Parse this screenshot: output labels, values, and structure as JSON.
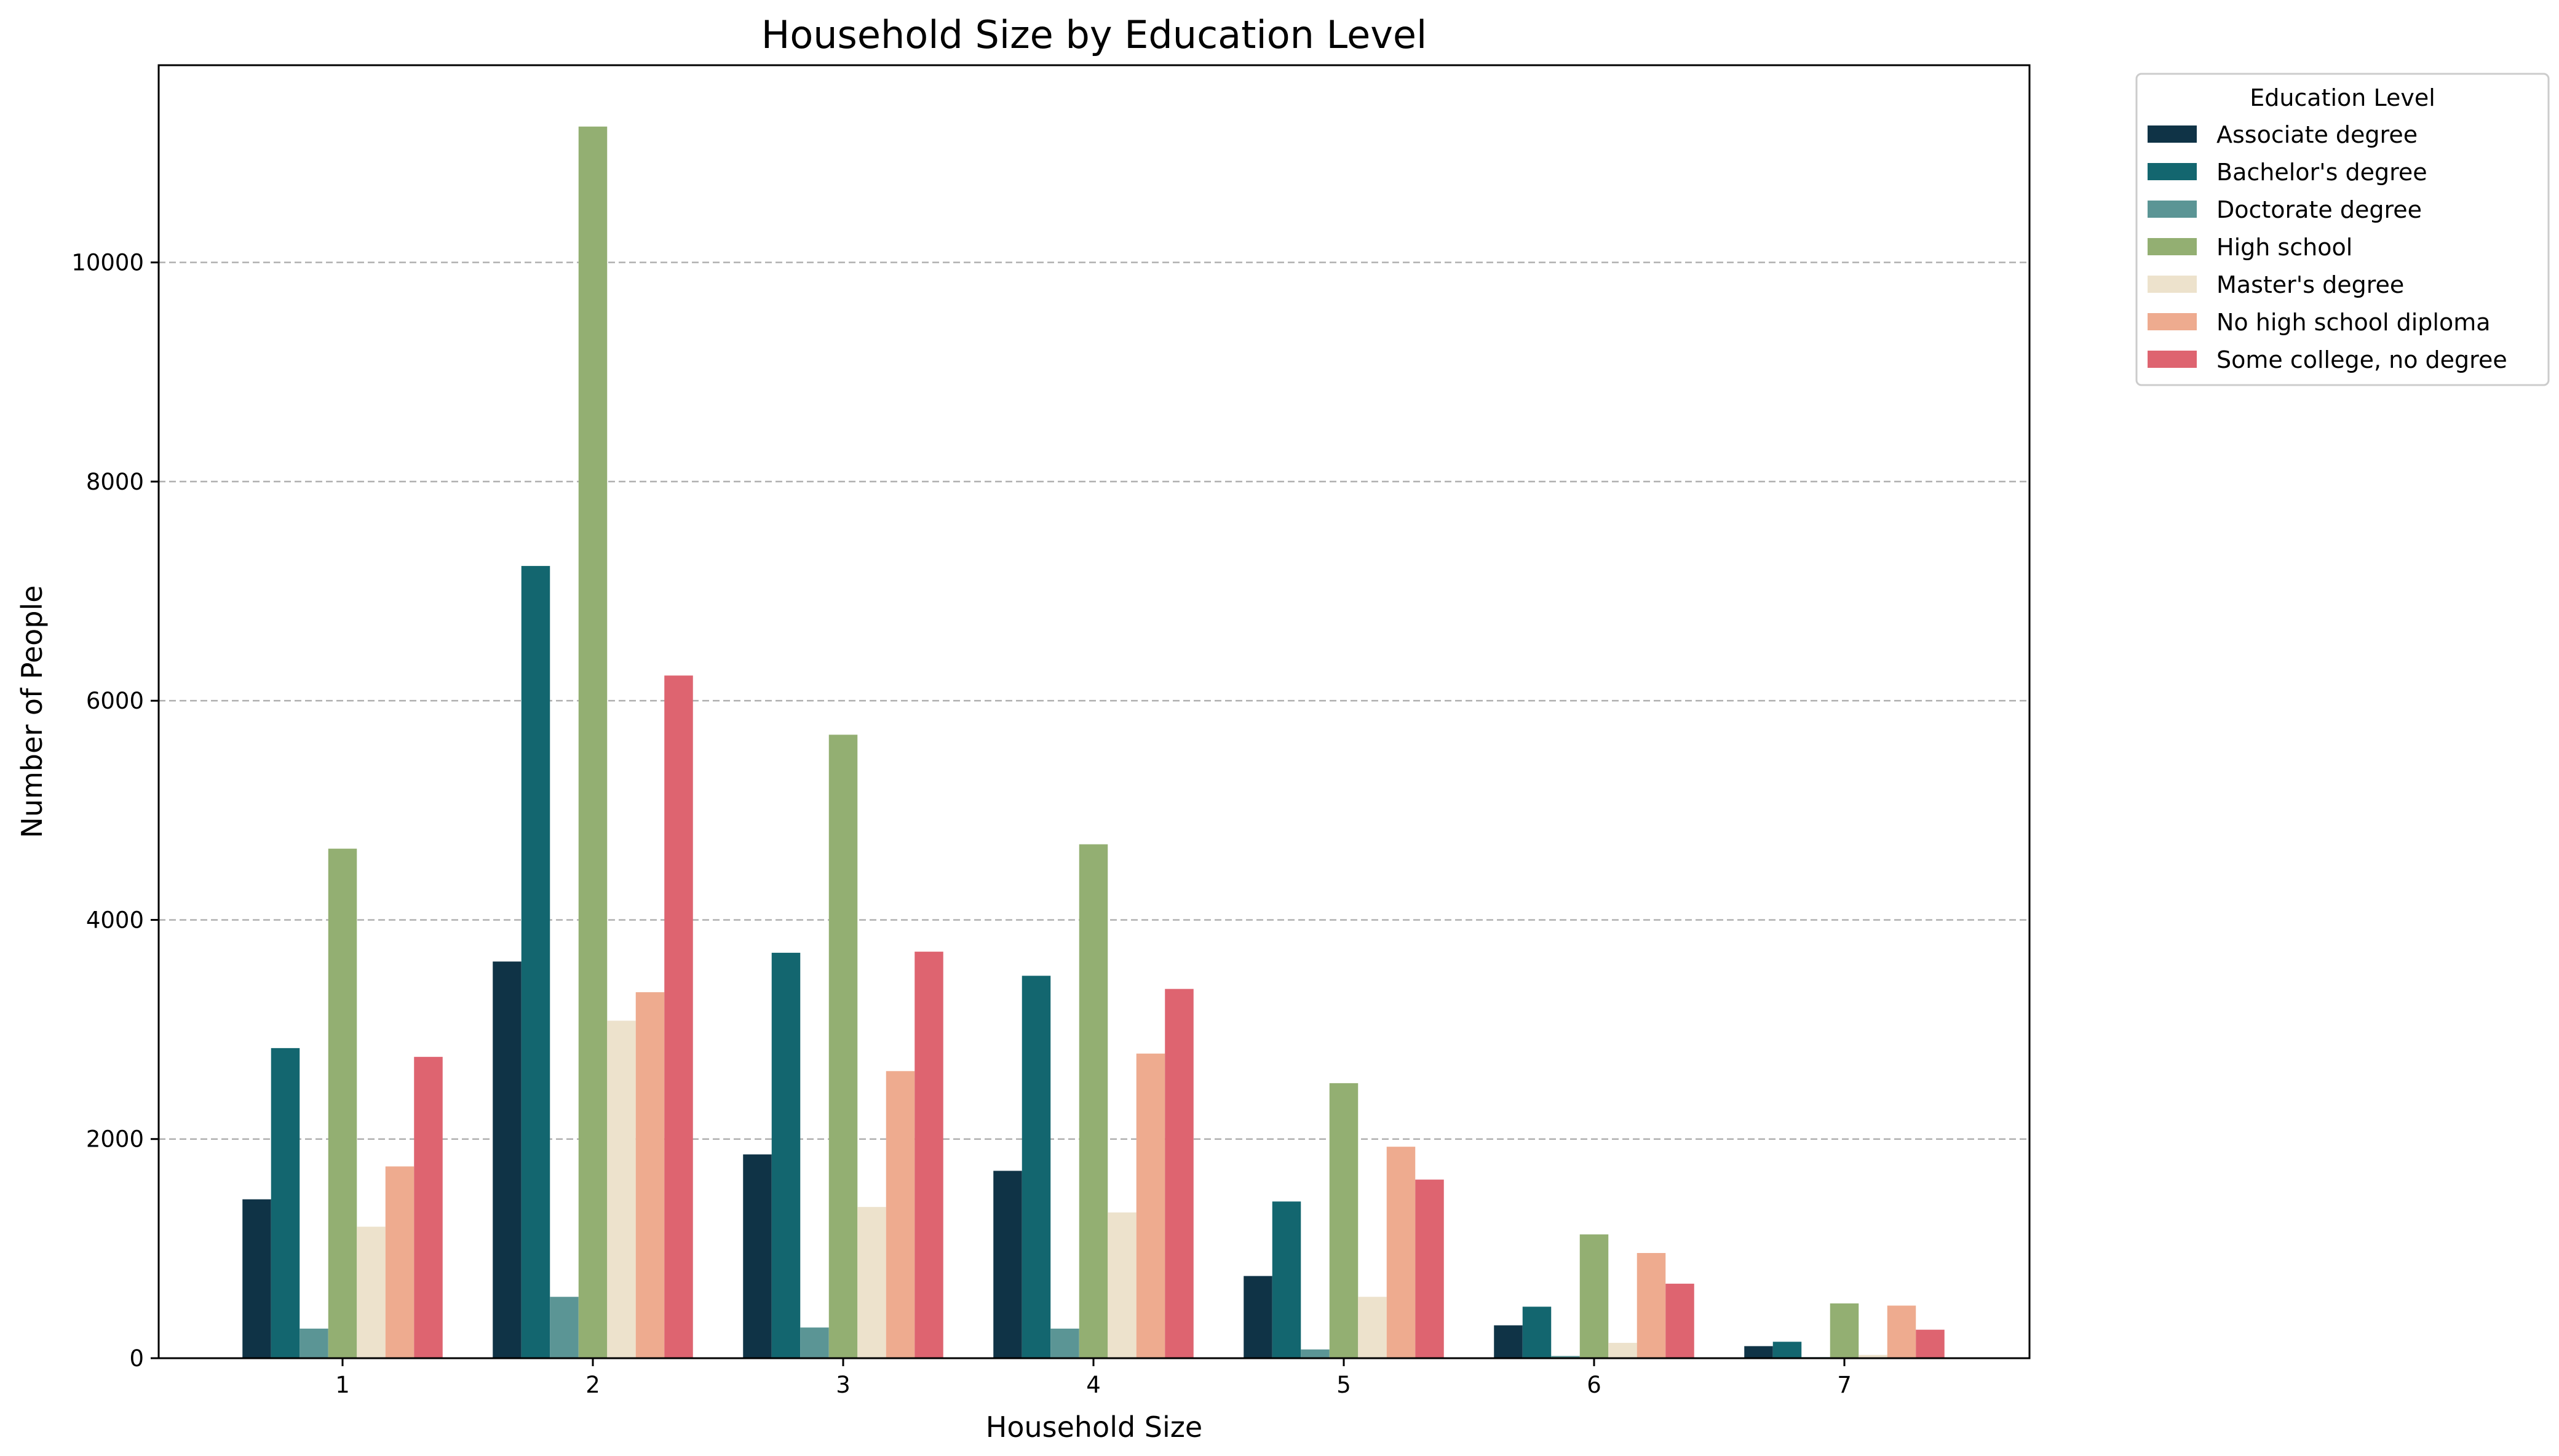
{
  "chart_data": {
    "type": "bar",
    "title": "Household Size by Education Level",
    "xlabel": "Household Size",
    "ylabel": "Number of People",
    "categories": [
      "1",
      "2",
      "3",
      "4",
      "5",
      "6",
      "7"
    ],
    "ylim": [
      0,
      11800
    ],
    "yticks": [
      "0",
      "2000",
      "4000",
      "6000",
      "8000",
      "10000"
    ],
    "grid": "y-dashed",
    "legend": {
      "title": "Education Level",
      "placement": "outside-top-right"
    },
    "series": [
      {
        "name": "Associate degree",
        "color": "#0f3346",
        "values": [
          1450,
          3620,
          1860,
          1710,
          750,
          300,
          110
        ]
      },
      {
        "name": "Bachelor's degree",
        "color": "#13666f",
        "values": [
          2830,
          7230,
          3700,
          3490,
          1430,
          470,
          150
        ]
      },
      {
        "name": "Doctorate degree",
        "color": "#5b9595",
        "values": [
          270,
          560,
          280,
          270,
          80,
          20,
          10
        ]
      },
      {
        "name": "High school",
        "color": "#93af72",
        "values": [
          4650,
          11240,
          5690,
          4690,
          2510,
          1130,
          500
        ]
      },
      {
        "name": "Master's degree",
        "color": "#ede2cc",
        "values": [
          1200,
          3080,
          1380,
          1330,
          560,
          140,
          30
        ]
      },
      {
        "name": "No high school diploma",
        "color": "#eeab8f",
        "values": [
          1750,
          3340,
          2620,
          2780,
          1930,
          960,
          480
        ]
      },
      {
        "name": "Some college, no degree",
        "color": "#de6470",
        "values": [
          2750,
          6230,
          3710,
          3370,
          1630,
          680,
          260
        ]
      }
    ]
  }
}
